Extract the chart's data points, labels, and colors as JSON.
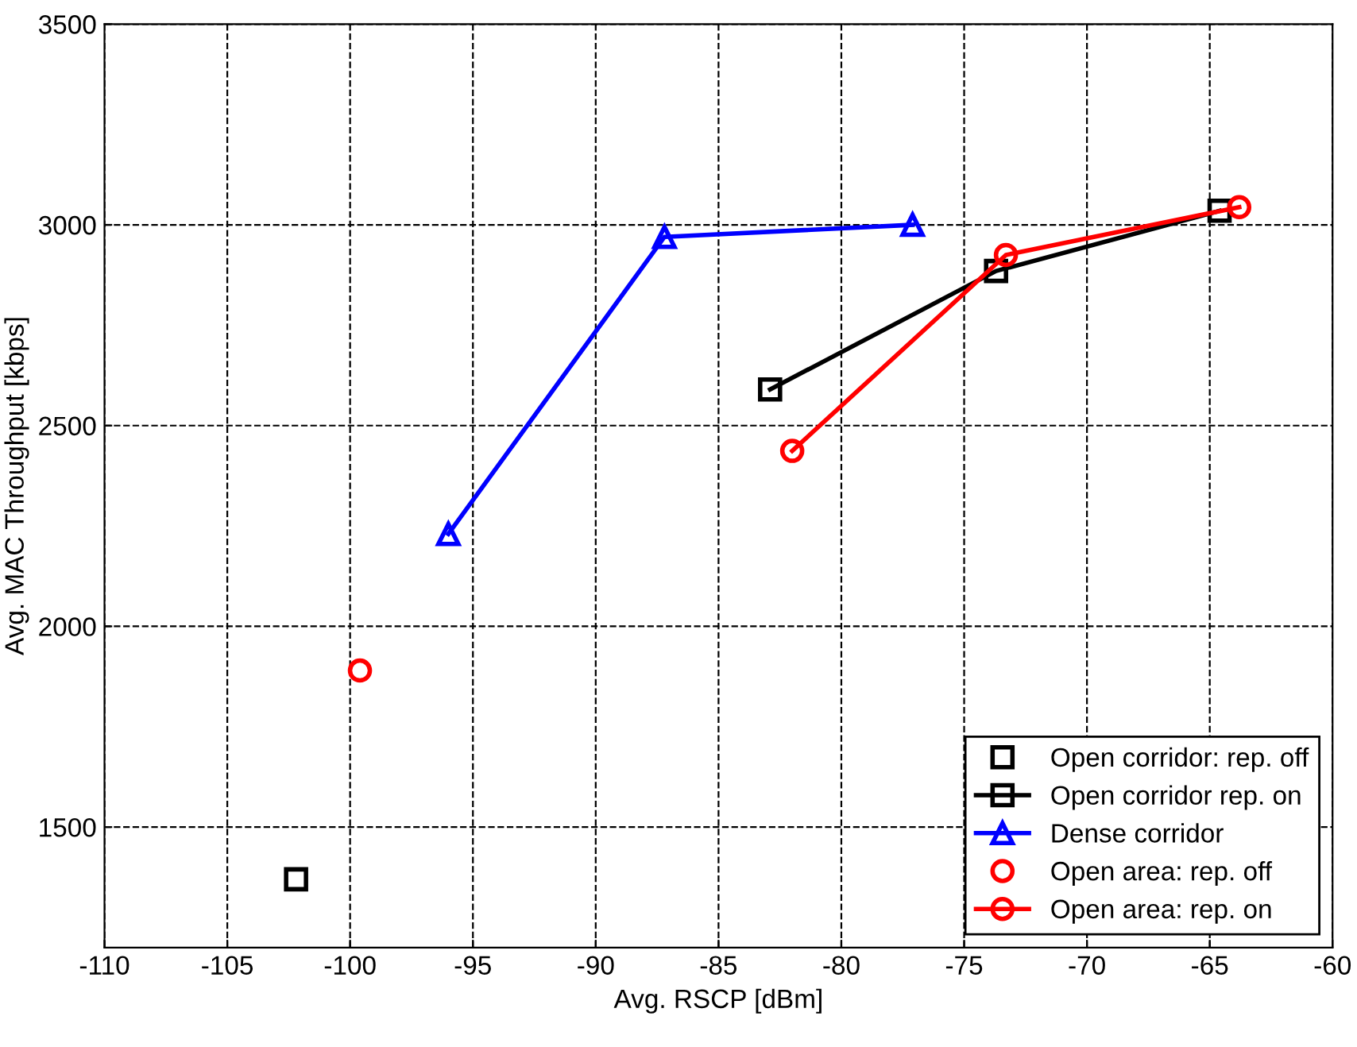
{
  "chart_data": {
    "type": "line",
    "xlabel": "Avg. RSCP [dBm]",
    "ylabel": "Avg. MAC Throughput [kbps]",
    "xlim": [
      -110,
      -60
    ],
    "xticks": [
      -110,
      -105,
      -100,
      -95,
      -90,
      -85,
      -80,
      -75,
      -70,
      -65,
      -60
    ],
    "ylim": [
      1200,
      3500
    ],
    "yticks": [
      1500,
      2000,
      2500,
      3000,
      3500
    ],
    "grid": true,
    "legend": "bottom right",
    "series": [
      {
        "name": "Open corridor: rep. off",
        "type": "scatter",
        "marker": "square",
        "color": "#000000",
        "x": [
          -102.2
        ],
        "values": [
          1370
        ]
      },
      {
        "name": "Open corridor rep. on",
        "marker": "square",
        "color": "#000000",
        "x": [
          -82.9,
          -73.7,
          -64.6
        ],
        "values": [
          2590,
          2885,
          3035
        ]
      },
      {
        "name": "Dense corridor",
        "marker": "triangle",
        "color": "#0000ff",
        "x": [
          -96.0,
          -87.2,
          -77.1
        ],
        "values": [
          2230,
          2970,
          3000
        ]
      },
      {
        "name": "Open area: rep. off",
        "type": "scatter",
        "marker": "circle",
        "color": "#ff0000",
        "x": [
          -99.6
        ],
        "values": [
          1890
        ]
      },
      {
        "name": "Open area: rep. on",
        "marker": "circle",
        "color": "#ff0000",
        "x": [
          -82.0,
          -73.3,
          -63.8
        ],
        "values": [
          2437,
          2925,
          3044
        ]
      }
    ]
  }
}
